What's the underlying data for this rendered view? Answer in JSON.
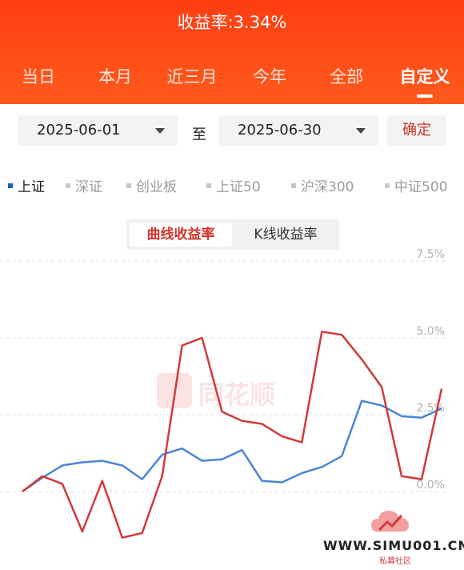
{
  "header": {
    "title_label": "收益率:",
    "title_value": "3.34%",
    "tabs": [
      "当日",
      "本月",
      "近三月",
      "今年",
      "全部",
      "自定义"
    ],
    "active_tab": "自定义"
  },
  "date_range": {
    "start": "2025-06-01",
    "separator": "至",
    "end": "2025-06-30",
    "confirm_label": "确定"
  },
  "index_legend": {
    "items": [
      "上证",
      "深证",
      "创业板",
      "上证50",
      "沪深300",
      "中证500"
    ],
    "active": "上证"
  },
  "mode_toggle": {
    "options": [
      "曲线收益率",
      "K线收益率"
    ],
    "selected": "曲线收益率"
  },
  "watermark": {
    "brand": "同花顺",
    "site": "WWW.SIMU001.CN",
    "sub": "私募社区"
  },
  "colors": {
    "header": "#ff4a17",
    "series_blue": "#4a86d4",
    "series_red": "#d13a3a",
    "active_text": "#d2332a"
  },
  "chart_data": {
    "type": "line",
    "yticks": [
      "7.5%",
      "5.0%",
      "2.5%",
      "0.0%"
    ],
    "y_ticks_values": [
      7.5,
      5.0,
      2.5,
      0.0
    ],
    "ylim": [
      -2.2,
      7.5
    ],
    "x": [
      1,
      2,
      3,
      4,
      5,
      6,
      7,
      8,
      9,
      10,
      11,
      12,
      13,
      14,
      15,
      16,
      17,
      18,
      19,
      20,
      21,
      22
    ],
    "series": [
      {
        "values": [
          0.0,
          0.45,
          0.85,
          0.95,
          1.0,
          0.85,
          0.4,
          1.2,
          1.4,
          1.0,
          1.05,
          1.35,
          0.35,
          0.3,
          0.6,
          0.8,
          1.15,
          2.95,
          2.8,
          2.45,
          2.4,
          2.7
        ]
      },
      {
        "values": [
          0.0,
          0.5,
          0.25,
          -1.3,
          0.35,
          -1.5,
          -1.35,
          0.5,
          4.75,
          5.0,
          2.6,
          2.3,
          2.2,
          1.8,
          1.6,
          5.2,
          5.1,
          4.3,
          3.4,
          0.5,
          0.4,
          3.34
        ]
      }
    ]
  }
}
